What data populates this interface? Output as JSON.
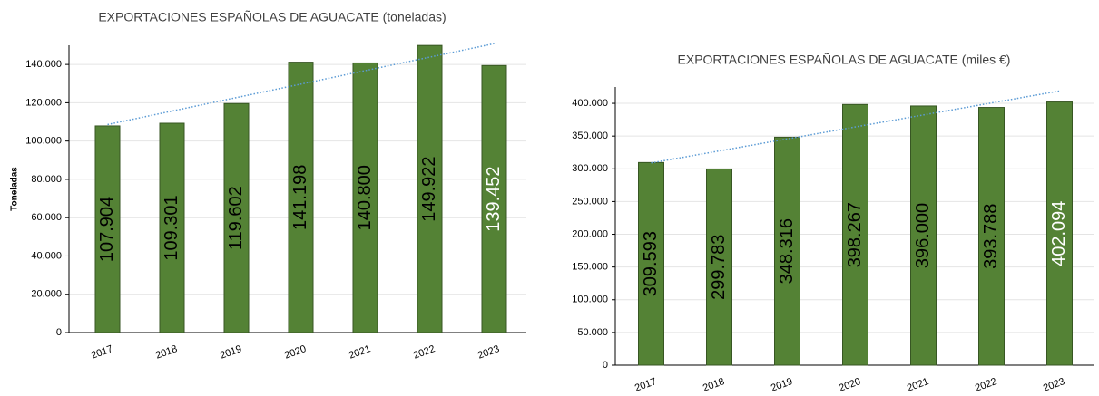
{
  "chart_data": [
    {
      "type": "bar",
      "title": "EXPORTACIONES ESPAÑOLAS DE AGUACATE (toneladas)",
      "y_label": "Toneladas",
      "categories": [
        "2017",
        "2018",
        "2019",
        "2020",
        "2021",
        "2022",
        "2023"
      ],
      "values": [
        107904,
        109301,
        119602,
        141198,
        140800,
        149922,
        139452
      ],
      "value_labels": [
        "107.904",
        "109.301",
        "119.602",
        "141.198",
        "140.800",
        "149.922",
        "139.452"
      ],
      "value_label_colors": [
        "#000000",
        "#000000",
        "#000000",
        "#000000",
        "#000000",
        "#000000",
        "#ffffff"
      ],
      "color": "#548235",
      "trendline": true,
      "ylim": [
        0,
        150000
      ],
      "yticks": [
        0,
        {
          "value": 20000,
          "label": "20.000"
        },
        {
          "value": 40000,
          "label": "40.000"
        },
        {
          "value": 60000,
          "label": "60.000"
        },
        {
          "value": 80000,
          "label": "80.000"
        },
        {
          "value": 100000,
          "label": "100.000"
        },
        {
          "value": 120000,
          "label": "120.000"
        },
        {
          "value": 140000,
          "label": "140.000"
        }
      ],
      "grid": true
    },
    {
      "type": "bar",
      "title": "EXPORTACIONES ESPAÑOLAS DE AGUACATE (miles €)",
      "categories": [
        "2017",
        "2018",
        "2019",
        "2020",
        "2021",
        "2022",
        "2023"
      ],
      "values": [
        309593,
        299783,
        348316,
        398267,
        396000,
        393788,
        402094
      ],
      "value_labels": [
        "309.593",
        "299.783",
        "348.316",
        "398.267",
        "396.000",
        "393.788",
        "402.094"
      ],
      "value_label_colors": [
        "#000000",
        "#000000",
        "#000000",
        "#000000",
        "#000000",
        "#000000",
        "#ffffff"
      ],
      "color": "#548235",
      "trendline": true,
      "ylim": [
        0,
        425000
      ],
      "yticks": [
        0,
        {
          "value": 50000,
          "label": "50.000"
        },
        {
          "value": 100000,
          "label": "100.000"
        },
        {
          "value": 150000,
          "label": "150.000"
        },
        {
          "value": 200000,
          "label": "200.000"
        },
        {
          "value": 250000,
          "label": "250.000"
        },
        {
          "value": 300000,
          "label": "300.000"
        },
        {
          "value": 350000,
          "label": "350.000"
        },
        {
          "value": 400000,
          "label": "400.000"
        }
      ],
      "grid": true
    }
  ]
}
